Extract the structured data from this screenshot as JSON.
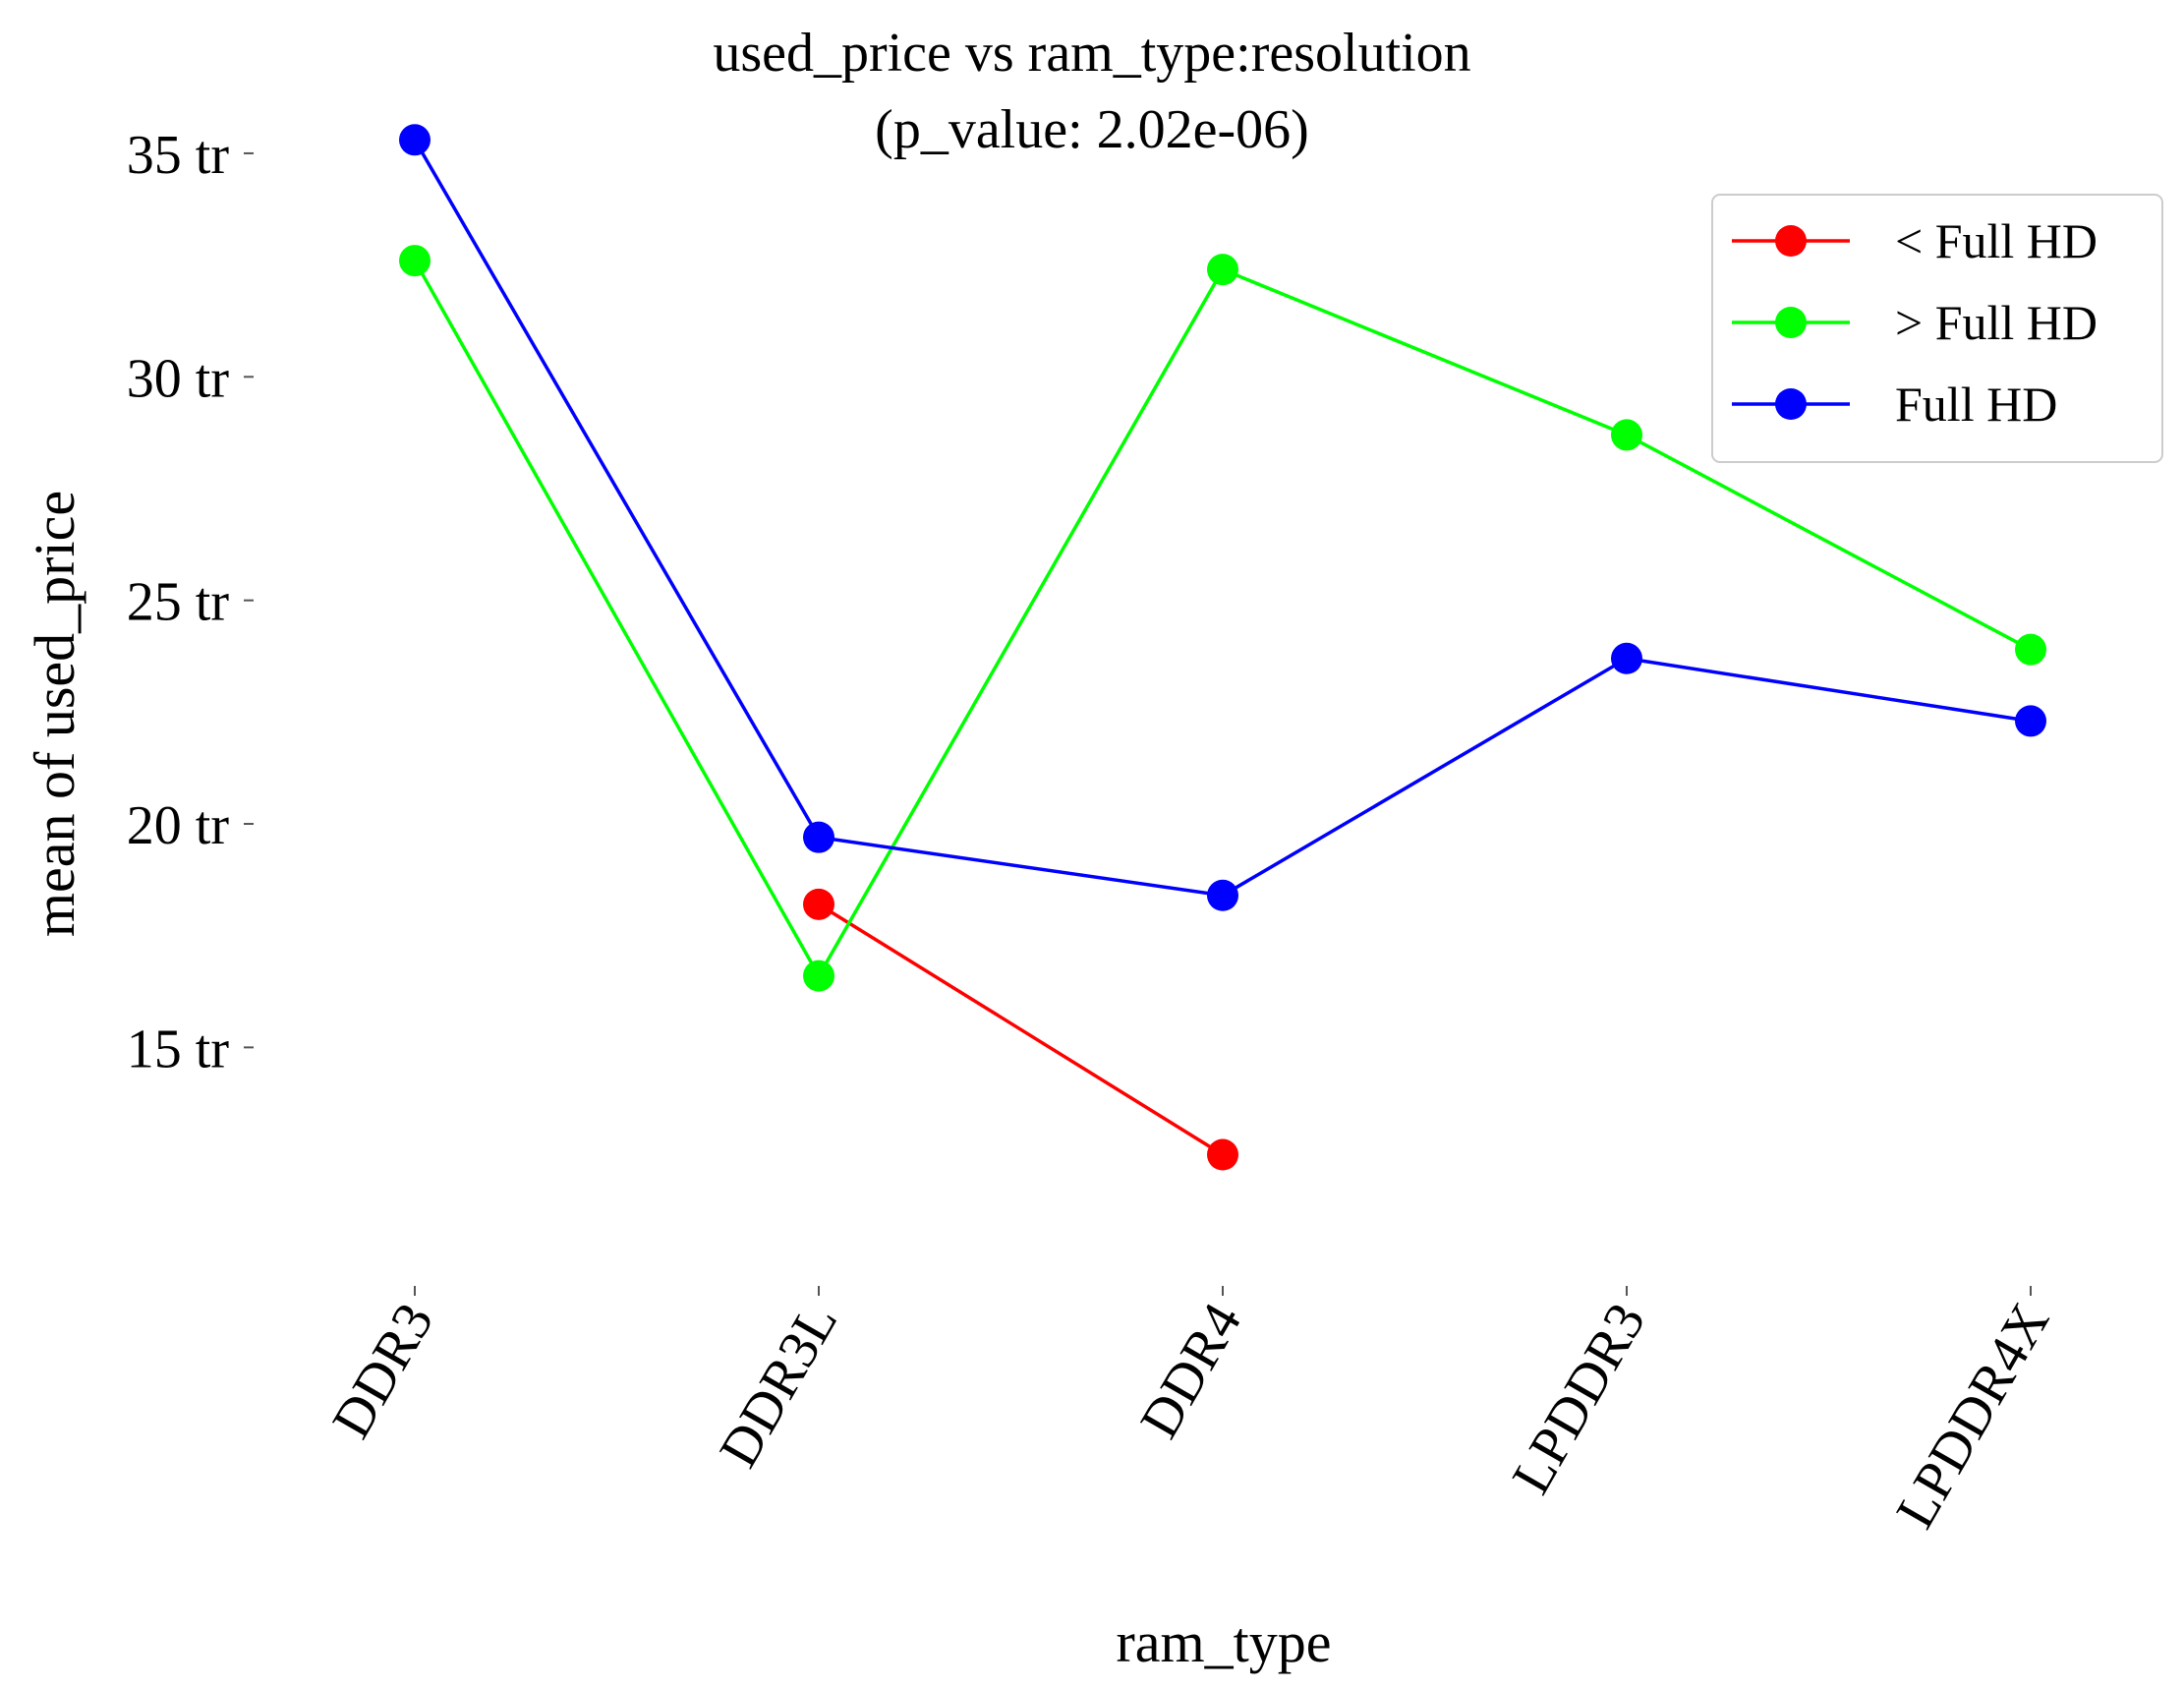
{
  "chart_data": {
    "type": "line",
    "title": "used_price vs ram_type:resolution",
    "subtitle": "(p_value: 2.02e-06)",
    "xlabel": "ram_type",
    "ylabel": "mean of used_price",
    "categories": [
      "DDR3",
      "DDR3L",
      "DDR4",
      "LPDDR3",
      "LPDDR4X"
    ],
    "ylim": [
      10.5,
      37
    ],
    "yticks": [
      15,
      20,
      25,
      30,
      35
    ],
    "ytick_labels": [
      "15 tr",
      "20 tr",
      "25 tr",
      "30 tr",
      "35 tr"
    ],
    "grid": false,
    "legend_position": "top-right",
    "series": [
      {
        "name": "< Full HD",
        "color": "#ff0000",
        "values": [
          null,
          18.2,
          12.6,
          null,
          null
        ]
      },
      {
        "name": "> Full HD",
        "color": "#00ff00",
        "values": [
          32.6,
          16.6,
          32.4,
          28.7,
          23.9
        ]
      },
      {
        "name": "Full HD",
        "color": "#0000ff",
        "values": [
          35.3,
          19.7,
          18.4,
          23.7,
          22.3
        ]
      }
    ]
  }
}
